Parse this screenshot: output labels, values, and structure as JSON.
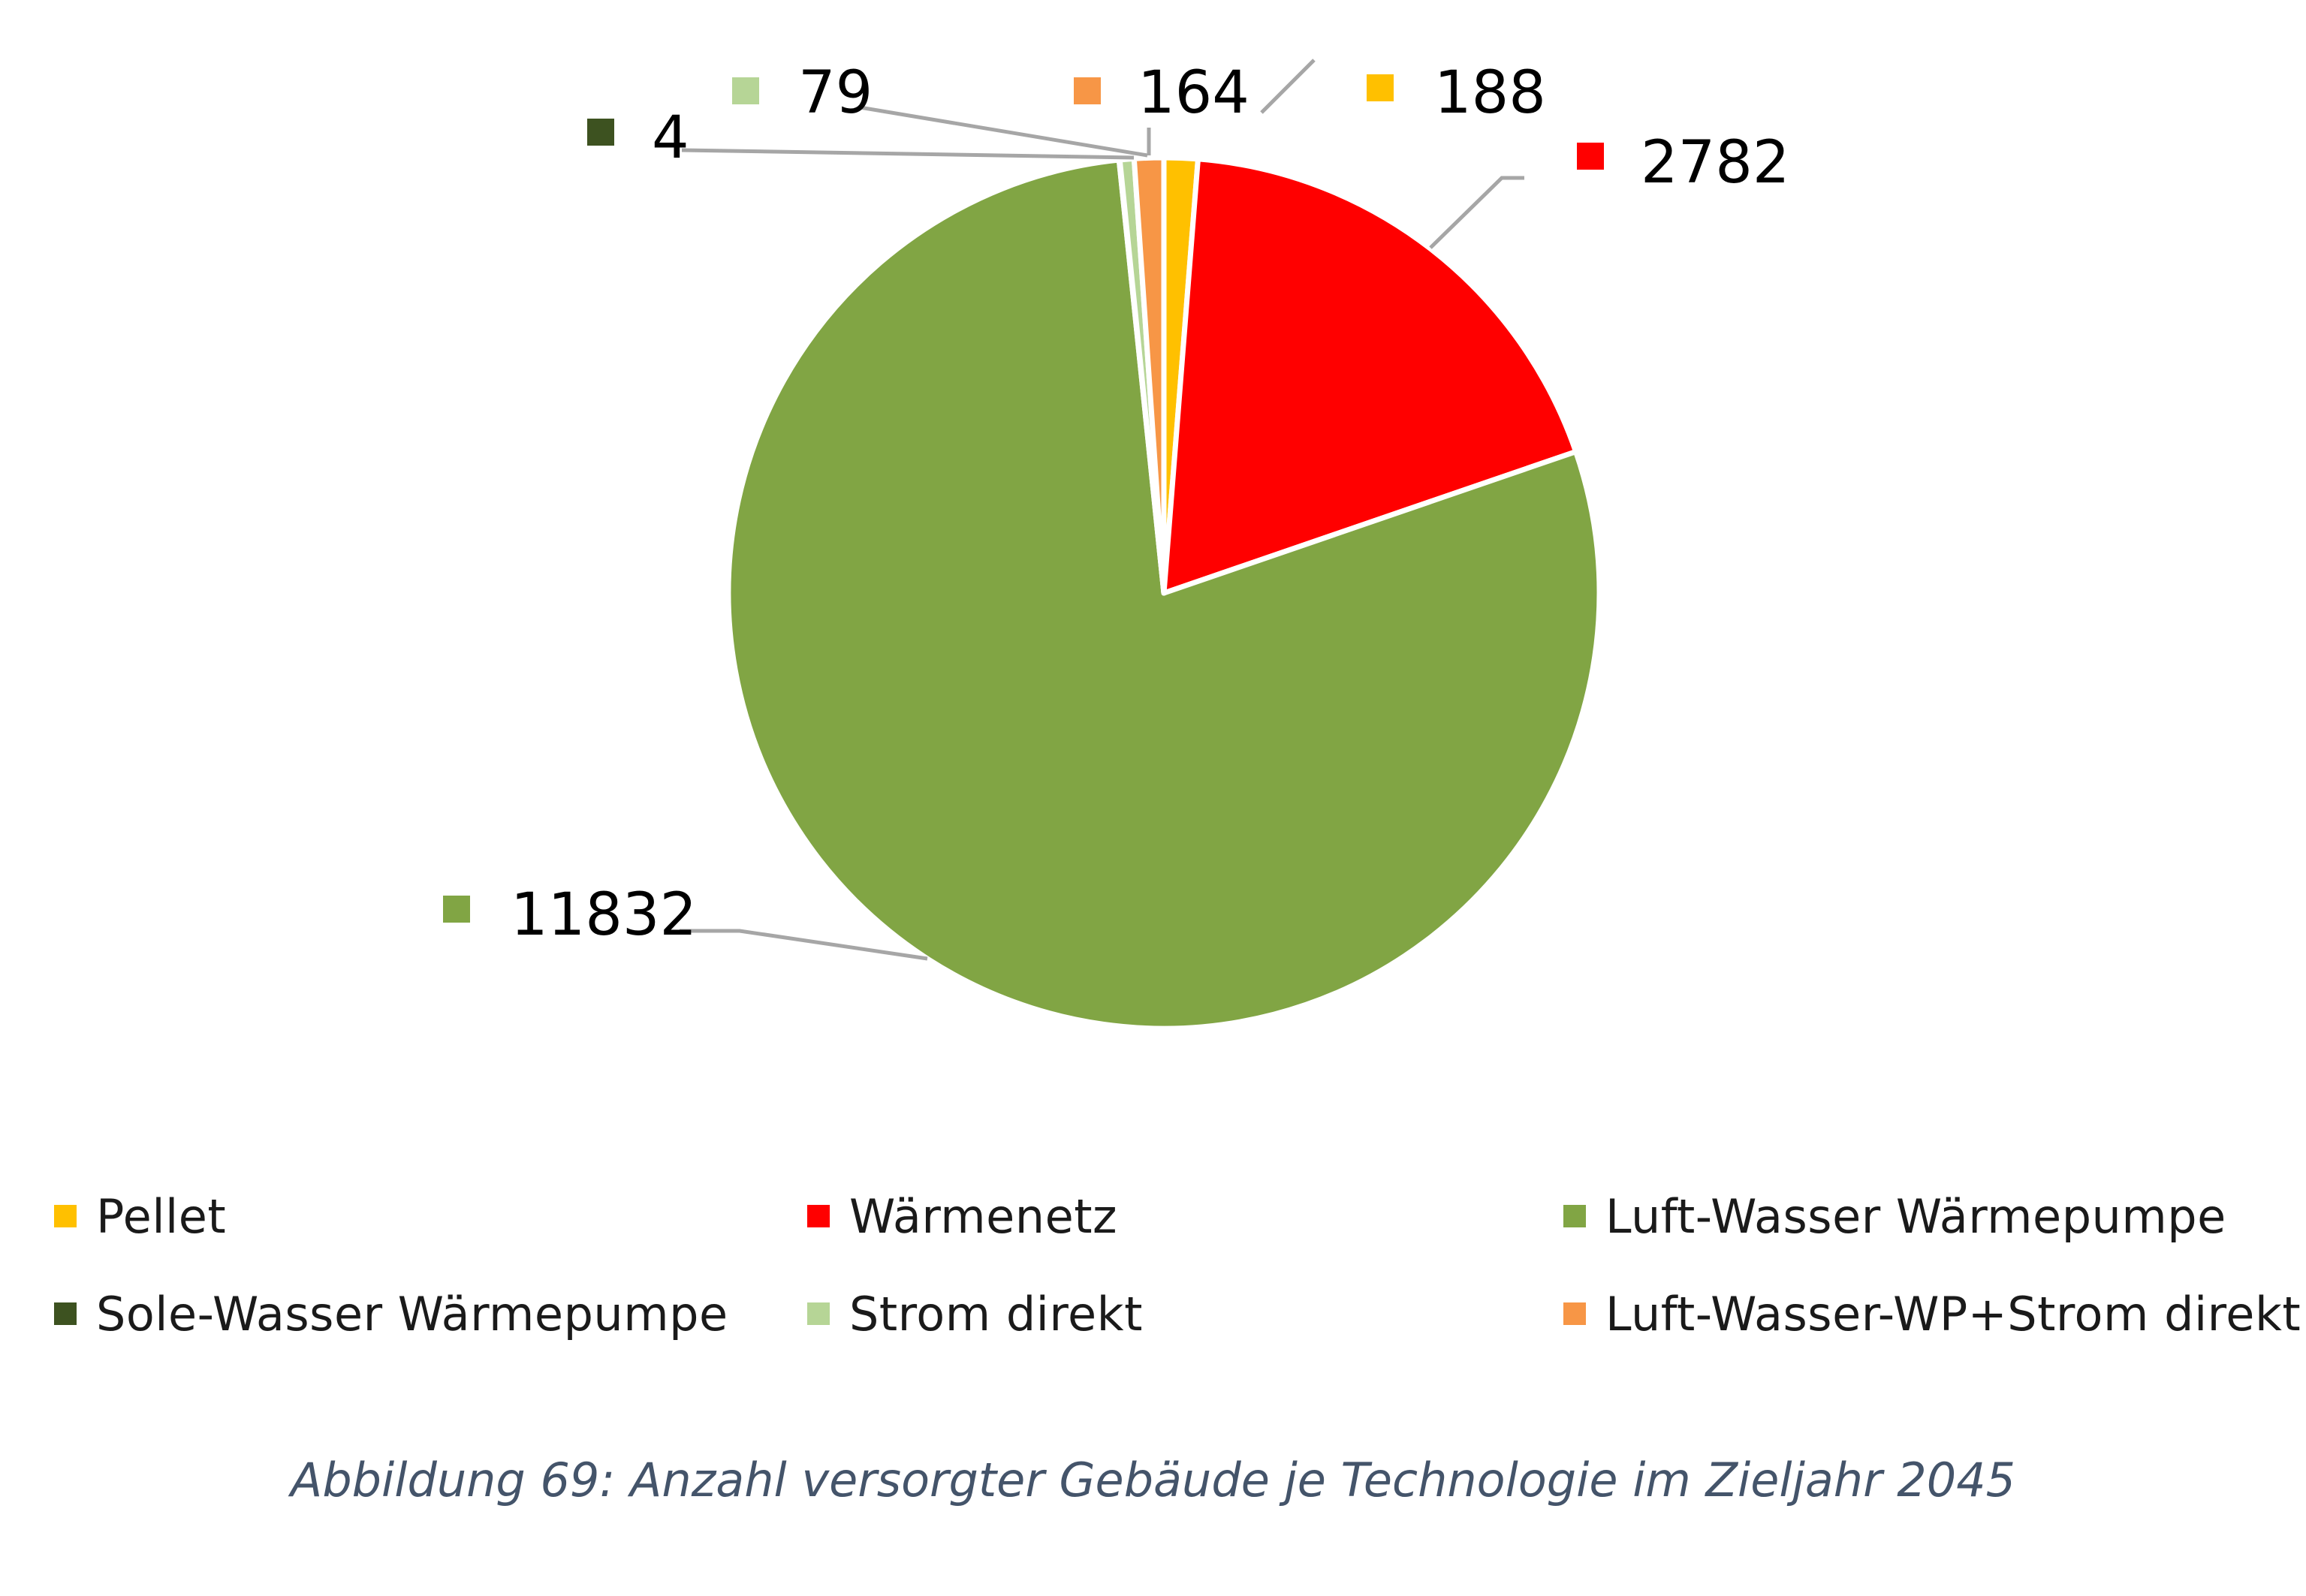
{
  "chart_data": {
    "type": "pie",
    "title": "",
    "start_angle_deg": 0,
    "direction": "clockwise",
    "slices": [
      {
        "label": "Pellet",
        "value": 188,
        "color": "#ffc000"
      },
      {
        "label": "Wärmenetz",
        "value": 2782,
        "color": "#ff0000"
      },
      {
        "label": "Luft-Wasser Wärmepumpe",
        "value": 11832,
        "color": "#81a544"
      },
      {
        "label": "Sole-Wasser Wärmepumpe",
        "value": 4,
        "color": "#3d5220"
      },
      {
        "label": "Strom direkt",
        "value": 79,
        "color": "#b6d596"
      },
      {
        "label": "Luft-Wasser-WP+Strom direkt",
        "value": 164,
        "color": "#f79646"
      }
    ],
    "data_labels": [
      "188",
      "2782",
      "11832",
      "4",
      "79",
      "164"
    ],
    "legend_position": "bottom",
    "leader_line_color": "#a6a6a6"
  },
  "caption": "Abbildung 69: Anzahl versorgter Gebäude je Technologie im Zieljahr 2045"
}
